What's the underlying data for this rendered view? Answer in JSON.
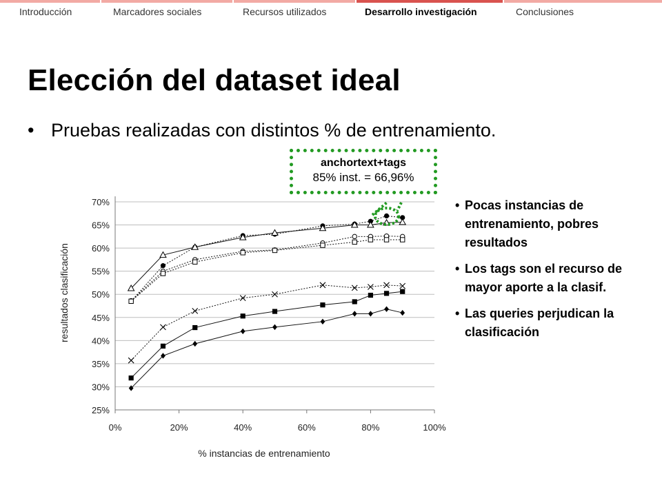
{
  "nav": {
    "items": [
      {
        "label": "Introducción",
        "active": false
      },
      {
        "label": "Marcadores sociales",
        "active": false
      },
      {
        "label": "Recursos utilizados",
        "active": false
      },
      {
        "label": "Desarrollo investigación",
        "active": true
      },
      {
        "label": "Conclusiones",
        "active": false
      }
    ]
  },
  "slide": {
    "title": "Elección del dataset ideal",
    "bullet": "Pruebas realizadas con distintos % de entrenamiento."
  },
  "callout": {
    "title": "anchortext+tags",
    "value": "85% inst. = 66,96%"
  },
  "notes": [
    "Pocas instancias de entrenamiento, pobres resultados",
    "Los tags son el recurso de mayor aporte a la clasif.",
    "Las queries perjudican la clasificación"
  ],
  "colors": {
    "accent": "#d9534f",
    "nav_bar": "#f2aaa4",
    "callout_border": "#229a22"
  },
  "chart_data": {
    "type": "line",
    "xlabel": "% instancias de entrenamiento",
    "ylabel": "resultados clasificación",
    "xlim": [
      0,
      100
    ],
    "ylim": [
      25,
      70
    ],
    "x_ticks": [
      "0%",
      "20%",
      "40%",
      "60%",
      "80%",
      "100%"
    ],
    "y_ticks": [
      "25%",
      "30%",
      "35%",
      "40%",
      "45%",
      "50%",
      "55%",
      "60%",
      "65%",
      "70%"
    ],
    "grid": "horizontal",
    "legend": "none",
    "x": [
      5,
      15,
      25,
      40,
      50,
      65,
      75,
      80,
      85,
      90
    ],
    "series": [
      {
        "marker": "circle-filled",
        "dash": "dashed",
        "values": [
          48.5,
          56.2,
          60.2,
          62.7,
          63.0,
          64.8,
          65.2,
          65.8,
          66.96,
          66.6
        ]
      },
      {
        "marker": "triangle-open",
        "dash": "solid",
        "values": [
          51.3,
          58.5,
          60.2,
          62.3,
          63.3,
          64.3,
          65.0,
          65.0,
          65.5,
          65.6
        ]
      },
      {
        "marker": "circle-open",
        "dash": "dashed",
        "values": [
          48.6,
          55.0,
          57.5,
          59.3,
          59.6,
          61.1,
          62.5,
          62.5,
          62.6,
          62.5
        ]
      },
      {
        "marker": "square-open",
        "dash": "dashed",
        "values": [
          48.5,
          54.5,
          57.0,
          59.0,
          59.5,
          60.6,
          61.3,
          61.8,
          61.8,
          61.8
        ]
      },
      {
        "marker": "x",
        "dash": "dashed",
        "values": [
          35.7,
          42.9,
          46.4,
          49.2,
          50.0,
          52.0,
          51.4,
          51.6,
          52.0,
          51.8
        ]
      },
      {
        "marker": "square-filled",
        "dash": "solid",
        "values": [
          31.9,
          38.8,
          42.8,
          45.3,
          46.3,
          47.7,
          48.4,
          49.8,
          50.2,
          50.6
        ]
      },
      {
        "marker": "diamond-filled",
        "dash": "solid",
        "values": [
          29.7,
          36.7,
          39.3,
          42.0,
          42.9,
          44.1,
          45.8,
          45.8,
          46.8,
          46.0
        ]
      }
    ]
  }
}
